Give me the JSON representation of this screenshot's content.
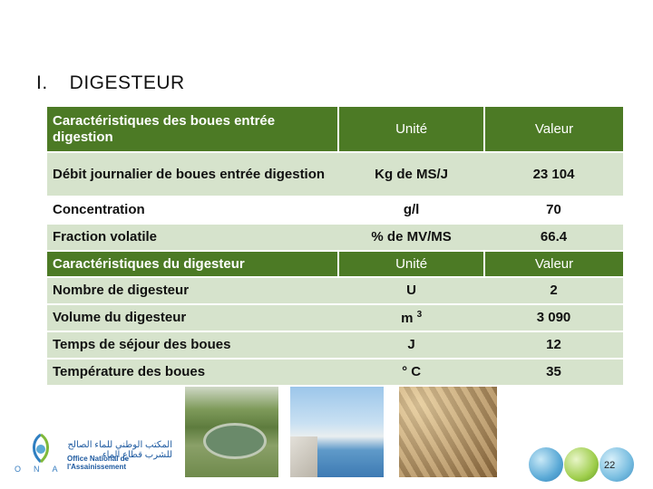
{
  "section": {
    "number": "I.",
    "title": "DIGESTEUR"
  },
  "table": {
    "header1": {
      "label": "Caractéristiques des boues entrée digestion",
      "unit": "Unité",
      "value": "Valeur"
    },
    "rows1": [
      {
        "label": "Débit journalier de boues entrée digestion",
        "unit": "Kg de MS/J",
        "value": "23 104"
      },
      {
        "label": "Concentration",
        "unit": "g/l",
        "value": "70"
      },
      {
        "label": "Fraction volatile",
        "unit": "% de MV/MS",
        "value": "66.4"
      }
    ],
    "header2": {
      "label": "Caractéristiques du digesteur",
      "unit": "Unité",
      "value": "Valeur"
    },
    "rows2": [
      {
        "label": "Nombre de digesteur",
        "unit": "U",
        "value": "2"
      },
      {
        "label": "Volume du digesteur",
        "unit": "m",
        "unit_sup": "3",
        "value": "3 090"
      },
      {
        "label": "Temps de séjour des boues",
        "unit": "J",
        "value": "12"
      },
      {
        "label": "Température des boues",
        "unit": "° C",
        "value": "35"
      }
    ]
  },
  "logo": {
    "letters": "ONA",
    "arabic": "المكتب الوطني للماء الصالح للشرب قطاع الماء",
    "name": "Office National de l'Assainissement"
  },
  "page_number": "22"
}
